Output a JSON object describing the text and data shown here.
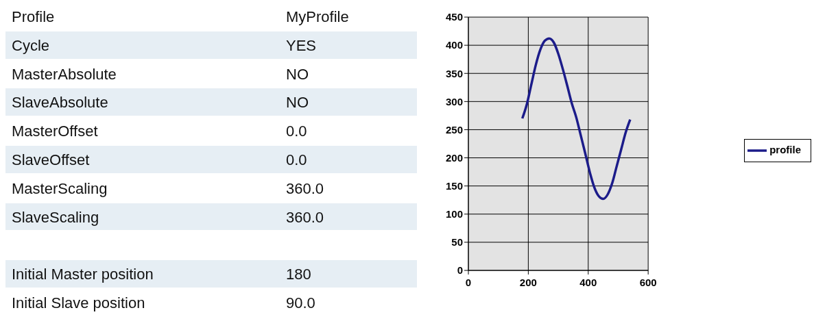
{
  "chart_data": [
    {
      "type": "other",
      "annotations": [
        "Profile",
        "MyProfile",
        "Cycle",
        "YES",
        "MasterAbsolute",
        "NO",
        "SlaveAbsolute",
        "NO",
        "MasterOffset",
        "0.0",
        "SlaveOffset",
        "0.0",
        "MasterScaling",
        "360.0",
        "SlaveScaling",
        "360.0",
        "Initial Master position",
        "180",
        "Initial Slave position",
        "90.0"
      ]
    },
    {
      "type": "line",
      "x": [
        180,
        195,
        210,
        225,
        240,
        255,
        270,
        285,
        300,
        315,
        330,
        345,
        360,
        375,
        390,
        405,
        420,
        435,
        450,
        465,
        480,
        495,
        510,
        525,
        540
      ],
      "series": [
        {
          "name": "profile",
          "color": "#1c1c8a",
          "values": [
            270,
            295,
            330,
            365,
            392,
            408,
            412,
            405,
            385,
            358,
            328,
            297,
            272,
            240,
            208,
            175,
            148,
            132,
            127,
            135,
            155,
            185,
            215,
            245,
            268
          ]
        }
      ],
      "xlim": [
        0,
        600
      ],
      "xticks": [
        0,
        200,
        400,
        600
      ],
      "ylim": [
        0,
        450
      ],
      "yticks": [
        0,
        50,
        100,
        150,
        200,
        250,
        300,
        350,
        400,
        450
      ],
      "grid": true,
      "legend": "right",
      "marker": "none",
      "line_style": "solid"
    }
  ]
}
